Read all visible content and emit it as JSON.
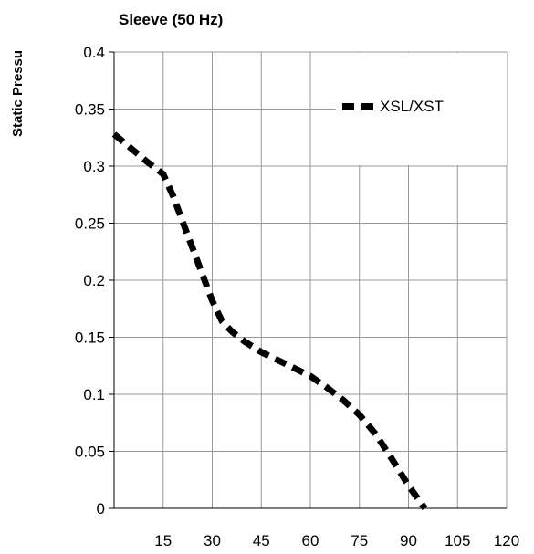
{
  "chart_data": {
    "type": "line",
    "title": "Sleeve (50 Hz)",
    "xlabel": "",
    "ylabel": "Static Pressu",
    "xlim": [
      0,
      120
    ],
    "ylim": [
      0,
      0.4
    ],
    "x_ticks": [
      15,
      30,
      45,
      60,
      75,
      90,
      105,
      120
    ],
    "y_ticks": [
      0,
      0.05,
      0.1,
      0.15,
      0.2,
      0.25,
      0.3,
      0.35,
      0.4
    ],
    "grid": true,
    "legend_position": "top-right",
    "series": [
      {
        "name": "XSL/XST",
        "style": "dashed",
        "color": "#000000",
        "x": [
          0,
          5,
          10,
          15,
          18,
          21,
          24,
          27,
          30,
          33,
          36,
          40,
          45,
          50,
          55,
          60,
          65,
          70,
          75,
          80,
          85,
          90,
          95
        ],
        "y": [
          0.328,
          0.316,
          0.304,
          0.293,
          0.274,
          0.251,
          0.228,
          0.205,
          0.182,
          0.164,
          0.155,
          0.146,
          0.137,
          0.13,
          0.123,
          0.116,
          0.106,
          0.095,
          0.082,
          0.065,
          0.043,
          0.02,
          0.0
        ]
      }
    ]
  }
}
